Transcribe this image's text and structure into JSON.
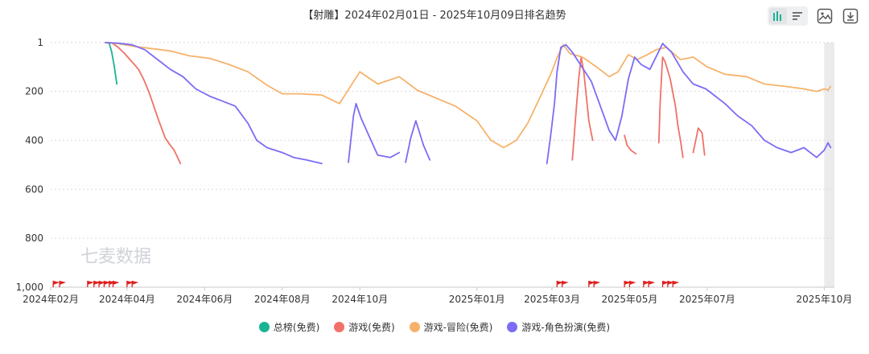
{
  "toolbar": {
    "chart_view_icon": "bar-chart-icon",
    "list_view_icon": "list-icon",
    "image_icon": "image-icon",
    "download_icon": "download-icon"
  },
  "watermark": "七麦数据",
  "chart_data": {
    "type": "line",
    "title": "【射雕】2024年02月01日 - 2025年10月09日排名趋势",
    "x_tick_labels": [
      "2024年02月",
      "2024年04月",
      "2024年06月",
      "2024年08月",
      "2024年10月",
      "2025年01月",
      "2025年03月",
      "2025年05月",
      "2025年07月",
      "2025年10月"
    ],
    "x_tick_dates": [
      "2024-02-01",
      "2024-04-01",
      "2024-06-01",
      "2024-08-01",
      "2024-10-01",
      "2025-01-01",
      "2025-03-01",
      "2025-05-01",
      "2025-07-01",
      "2025-10-01"
    ],
    "x_range": [
      "2024-02-01",
      "2025-10-09"
    ],
    "y_tick_labels": [
      "1",
      "200",
      "400",
      "600",
      "800",
      "1,000"
    ],
    "y_tick_values": [
      1,
      200,
      400,
      600,
      800,
      1000
    ],
    "y_range": [
      1000,
      1
    ],
    "y_inverted": true,
    "grid": "horizontal-dashed",
    "legend_position": "bottom",
    "shaded_region": [
      "2025-10-01",
      "2025-10-09"
    ],
    "event_flag_dates": [
      "2024-02-03",
      "2024-02-08",
      "2024-03-01",
      "2024-03-06",
      "2024-03-10",
      "2024-03-14",
      "2024-03-18",
      "2024-03-21",
      "2024-04-01",
      "2024-04-05",
      "2025-03-05",
      "2025-03-09",
      "2025-03-30",
      "2025-04-03",
      "2025-04-27",
      "2025-05-01",
      "2025-05-12",
      "2025-05-16",
      "2025-05-27",
      "2025-05-31",
      "2025-06-04"
    ],
    "series": [
      {
        "name": "总榜(免费)",
        "color": "#1ab394",
        "points": [
          [
            "2024-03-15",
            1
          ],
          [
            "2024-03-18",
            3
          ],
          [
            "2024-03-20",
            40
          ],
          [
            "2024-03-22",
            100
          ],
          [
            "2024-03-24",
            170
          ]
        ]
      },
      {
        "name": "游戏(免费)",
        "color": "#f07167",
        "segments": [
          [
            [
              "2024-03-15",
              1
            ],
            [
              "2024-03-20",
              2
            ],
            [
              "2024-03-25",
              20
            ],
            [
              "2024-03-30",
              45
            ],
            [
              "2024-04-05",
              80
            ],
            [
              "2024-04-10",
              110
            ],
            [
              "2024-04-14",
              150
            ],
            [
              "2024-04-18",
              200
            ],
            [
              "2024-04-22",
              260
            ],
            [
              "2024-04-26",
              320
            ],
            [
              "2024-05-01",
              390
            ],
            [
              "2024-05-05",
              420
            ],
            [
              "2024-05-08",
              440
            ],
            [
              "2024-05-13",
              495
            ]
          ],
          [
            [
              "2025-03-17",
              480
            ],
            [
              "2025-03-20",
              280
            ],
            [
              "2025-03-22",
              150
            ],
            [
              "2025-03-24",
              60
            ],
            [
              "2025-03-26",
              120
            ],
            [
              "2025-03-28",
              220
            ],
            [
              "2025-03-30",
              320
            ],
            [
              "2025-04-02",
              400
            ]
          ],
          [
            [
              "2025-04-27",
              380
            ],
            [
              "2025-04-29",
              420
            ],
            [
              "2025-05-02",
              440
            ],
            [
              "2025-05-06",
              455
            ]
          ],
          [
            [
              "2025-05-24",
              410
            ],
            [
              "2025-05-25",
              250
            ],
            [
              "2025-05-26",
              150
            ],
            [
              "2025-05-27",
              60
            ],
            [
              "2025-05-29",
              80
            ],
            [
              "2025-06-02",
              150
            ],
            [
              "2025-06-06",
              260
            ],
            [
              "2025-06-08",
              340
            ],
            [
              "2025-06-10",
              400
            ],
            [
              "2025-06-12",
              470
            ]
          ],
          [
            [
              "2025-06-20",
              450
            ],
            [
              "2025-06-22",
              400
            ],
            [
              "2025-06-24",
              350
            ],
            [
              "2025-06-27",
              370
            ],
            [
              "2025-06-29",
              460
            ]
          ]
        ]
      },
      {
        "name": "游戏-冒险(免费)",
        "color": "#f6b26b",
        "points": [
          [
            "2024-03-15",
            1
          ],
          [
            "2024-03-25",
            5
          ],
          [
            "2024-04-05",
            15
          ],
          [
            "2024-04-20",
            25
          ],
          [
            "2024-05-05",
            35
          ],
          [
            "2024-05-20",
            55
          ],
          [
            "2024-06-05",
            65
          ],
          [
            "2024-06-20",
            90
          ],
          [
            "2024-07-05",
            120
          ],
          [
            "2024-07-20",
            175
          ],
          [
            "2024-08-01",
            210
          ],
          [
            "2024-08-15",
            210
          ],
          [
            "2024-09-01",
            215
          ],
          [
            "2024-09-15",
            250
          ],
          [
            "2024-10-01",
            120
          ],
          [
            "2024-10-15",
            170
          ],
          [
            "2024-11-01",
            140
          ],
          [
            "2024-11-15",
            195
          ],
          [
            "2024-12-01",
            230
          ],
          [
            "2024-12-15",
            260
          ],
          [
            "2025-01-01",
            320
          ],
          [
            "2025-01-12",
            400
          ],
          [
            "2025-01-22",
            430
          ],
          [
            "2025-02-01",
            400
          ],
          [
            "2025-02-10",
            330
          ],
          [
            "2025-02-20",
            220
          ],
          [
            "2025-02-28",
            130
          ],
          [
            "2025-03-06",
            50
          ],
          [
            "2025-03-10",
            10
          ],
          [
            "2025-03-15",
            45
          ],
          [
            "2025-03-25",
            60
          ],
          [
            "2025-04-05",
            100
          ],
          [
            "2025-04-15",
            140
          ],
          [
            "2025-04-22",
            120
          ],
          [
            "2025-04-30",
            50
          ],
          [
            "2025-05-07",
            70
          ],
          [
            "2025-05-15",
            50
          ],
          [
            "2025-05-22",
            30
          ],
          [
            "2025-05-30",
            20
          ],
          [
            "2025-06-10",
            70
          ],
          [
            "2025-06-20",
            60
          ],
          [
            "2025-07-01",
            100
          ],
          [
            "2025-07-15",
            130
          ],
          [
            "2025-08-01",
            140
          ],
          [
            "2025-08-15",
            170
          ],
          [
            "2025-09-01",
            180
          ],
          [
            "2025-09-15",
            190
          ],
          [
            "2025-09-25",
            200
          ],
          [
            "2025-10-01",
            190
          ],
          [
            "2025-10-04",
            195
          ],
          [
            "2025-10-06",
            180
          ]
        ]
      },
      {
        "name": "游戏-角色扮演(免费)",
        "color": "#7b6cf6",
        "segments": [
          [
            [
              "2024-03-15",
              1
            ],
            [
              "2024-03-25",
              3
            ],
            [
              "2024-04-05",
              10
            ],
            [
              "2024-04-15",
              30
            ],
            [
              "2024-04-25",
              70
            ],
            [
              "2024-05-05",
              110
            ],
            [
              "2024-05-15",
              140
            ],
            [
              "2024-05-25",
              190
            ],
            [
              "2024-06-05",
              220
            ],
            [
              "2024-06-15",
              240
            ],
            [
              "2024-06-25",
              260
            ],
            [
              "2024-07-05",
              330
            ],
            [
              "2024-07-12",
              400
            ],
            [
              "2024-07-20",
              430
            ],
            [
              "2024-08-01",
              450
            ],
            [
              "2024-08-10",
              470
            ],
            [
              "2024-08-20",
              480
            ],
            [
              "2024-09-01",
              495
            ]
          ],
          [
            [
              "2024-09-22",
              490
            ],
            [
              "2024-09-26",
              300
            ],
            [
              "2024-09-28",
              250
            ],
            [
              "2024-10-02",
              310
            ],
            [
              "2024-10-08",
              380
            ],
            [
              "2024-10-15",
              460
            ],
            [
              "2024-10-25",
              470
            ],
            [
              "2024-11-01",
              450
            ]
          ],
          [
            [
              "2024-11-06",
              490
            ],
            [
              "2024-11-10",
              390
            ],
            [
              "2024-11-14",
              320
            ],
            [
              "2024-11-20",
              420
            ],
            [
              "2024-11-25",
              480
            ]
          ],
          [
            [
              "2025-02-25",
              495
            ],
            [
              "2025-02-28",
              380
            ],
            [
              "2025-03-03",
              250
            ],
            [
              "2025-03-05",
              120
            ],
            [
              "2025-03-08",
              20
            ],
            [
              "2025-03-12",
              10
            ],
            [
              "2025-03-17",
              40
            ],
            [
              "2025-03-22",
              80
            ],
            [
              "2025-04-01",
              160
            ],
            [
              "2025-04-08",
              260
            ],
            [
              "2025-04-15",
              360
            ],
            [
              "2025-04-20",
              400
            ],
            [
              "2025-04-25",
              300
            ],
            [
              "2025-04-30",
              150
            ],
            [
              "2025-05-05",
              60
            ],
            [
              "2025-05-10",
              90
            ],
            [
              "2025-05-17",
              110
            ],
            [
              "2025-05-27",
              5
            ],
            [
              "2025-06-03",
              40
            ],
            [
              "2025-06-12",
              120
            ],
            [
              "2025-06-20",
              170
            ],
            [
              "2025-06-30",
              190
            ],
            [
              "2025-07-15",
              250
            ],
            [
              "2025-07-25",
              300
            ],
            [
              "2025-08-05",
              340
            ],
            [
              "2025-08-15",
              400
            ],
            [
              "2025-08-25",
              430
            ],
            [
              "2025-09-05",
              450
            ],
            [
              "2025-09-15",
              430
            ],
            [
              "2025-09-25",
              470
            ],
            [
              "2025-10-01",
              440
            ],
            [
              "2025-10-04",
              410
            ],
            [
              "2025-10-06",
              430
            ]
          ]
        ]
      }
    ]
  }
}
